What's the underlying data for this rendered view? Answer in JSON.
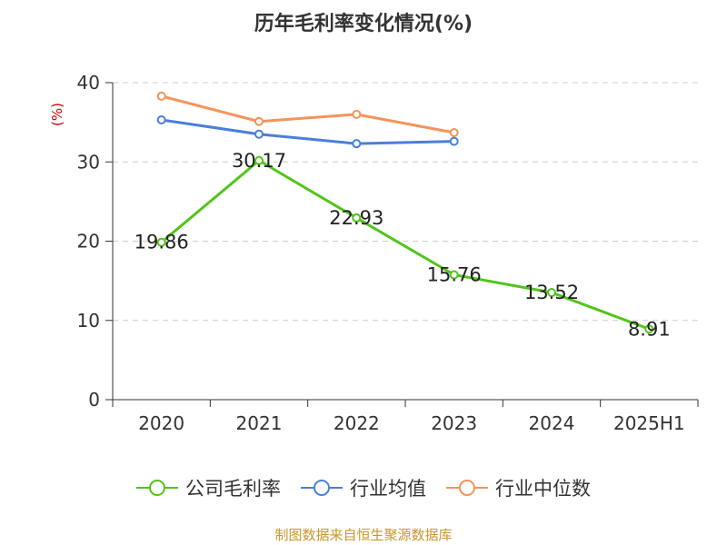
{
  "chart_data": {
    "type": "line",
    "title": "历年毛利率变化情况(%)",
    "ylabel": "(%)",
    "categories": [
      "2020",
      "2021",
      "2022",
      "2023",
      "2024",
      "2025H1"
    ],
    "ylim": [
      0,
      40
    ],
    "yticks": [
      0,
      10,
      20,
      30,
      40
    ],
    "grid": true,
    "legend_position": "bottom",
    "series": [
      {
        "name": "公司毛利率",
        "color": "#52c41a",
        "values": [
          19.86,
          30.17,
          22.93,
          15.76,
          13.52,
          8.91
        ],
        "labels": [
          "19.86",
          "30.17",
          "22.93",
          "15.76",
          "13.52",
          "8.91"
        ]
      },
      {
        "name": "行业均值",
        "color": "#4a7fdb",
        "values": [
          35.3,
          33.5,
          32.3,
          32.6,
          null,
          null
        ]
      },
      {
        "name": "行业中位数",
        "color": "#f5935a",
        "values": [
          38.3,
          35.1,
          36.0,
          33.7,
          null,
          null
        ]
      }
    ]
  },
  "source_text": "制图数据来自恒生聚源数据库",
  "colors": {
    "source_text": "#c8962f",
    "ylabel": "#cc0000",
    "axis": "#333333",
    "grid": "#cccccc"
  }
}
